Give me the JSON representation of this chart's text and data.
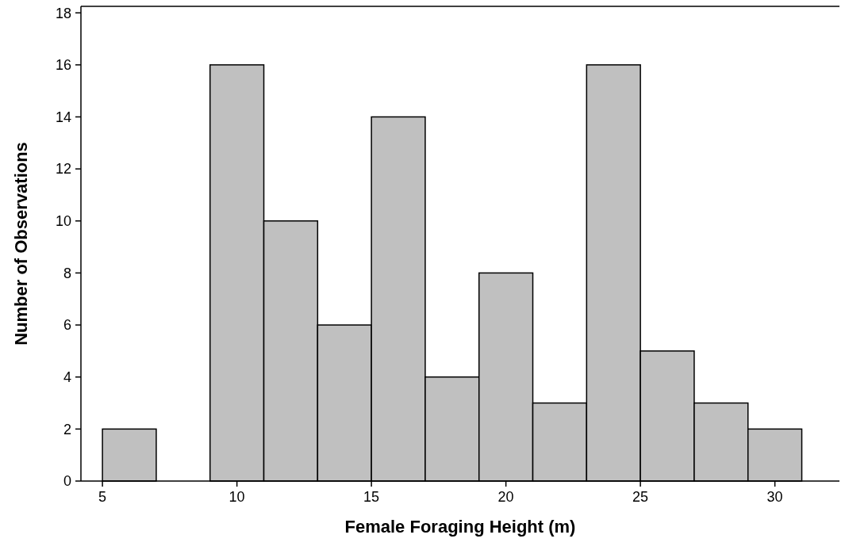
{
  "chart_data": {
    "type": "histogram",
    "xlabel": "Female Foraging Height (m)",
    "ylabel": "Number of Observations",
    "bins": [
      5,
      7,
      9,
      11,
      13,
      15,
      17,
      19,
      21,
      23,
      25,
      27,
      29,
      31
    ],
    "values": [
      2,
      0,
      16,
      10,
      6,
      14,
      4,
      8,
      3,
      16,
      5,
      3,
      2
    ],
    "color": "#c0c0c0",
    "xlim": [
      4.2,
      32.4
    ],
    "xticks": [
      5,
      10,
      15,
      20,
      25,
      30
    ],
    "ylim": [
      0,
      18.25
    ],
    "yticks": [
      0,
      2,
      4,
      6,
      8,
      10,
      12,
      14,
      16,
      18
    ],
    "grid": false
  }
}
